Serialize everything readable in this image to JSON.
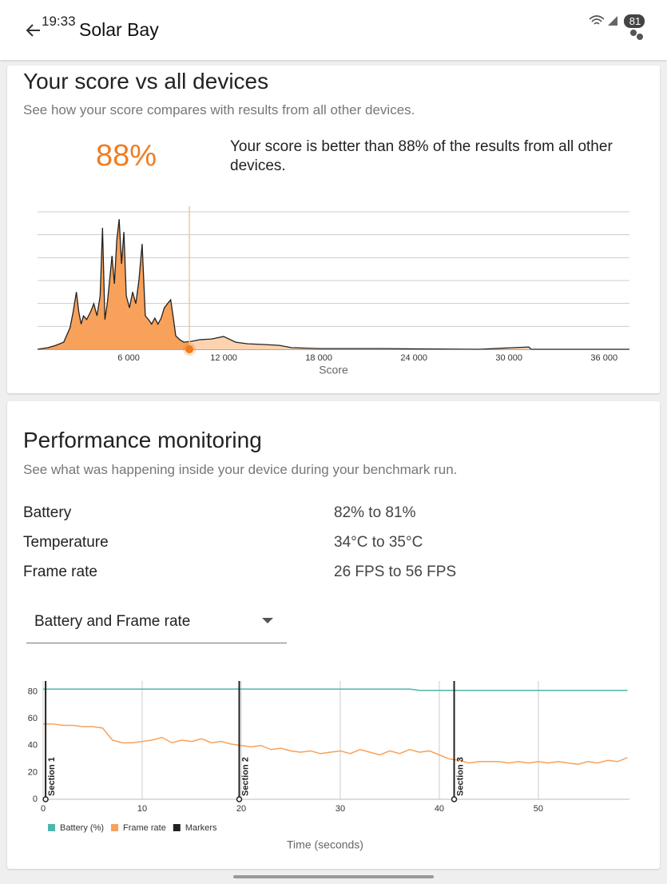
{
  "status_bar": {
    "time": "19:33",
    "battery": "81"
  },
  "app_bar": {
    "title": "Solar Bay"
  },
  "score_section": {
    "title": "Your score vs all devices",
    "subtitle": "See how your score compares with results from all other devices.",
    "percentile": "88%",
    "description": "Your score is better than 88% of the results from all other devices.",
    "chart": {
      "type": "area",
      "x_label": "Score",
      "xlim": [
        250,
        37600
      ],
      "ylim": [
        0,
        6
      ],
      "gridlines": [
        0,
        1,
        2,
        3,
        4,
        5,
        6
      ],
      "xticks": [
        {
          "value": 6000,
          "label": "6 000"
        },
        {
          "value": 12000,
          "label": "12 000"
        },
        {
          "value": 18000,
          "label": "18 000"
        },
        {
          "value": 24000,
          "label": "24 000"
        },
        {
          "value": 30000,
          "label": "30 000"
        },
        {
          "value": 36000,
          "label": "36 000"
        }
      ],
      "user_score": 9830,
      "color": "#f7a15b",
      "x": [
        250,
        900,
        1400,
        1900,
        2300,
        2500,
        2700,
        2850,
        3000,
        3150,
        3350,
        3600,
        3800,
        4000,
        4200,
        4350,
        4500,
        4650,
        4800,
        4950,
        5100,
        5250,
        5400,
        5550,
        5700,
        5850,
        6050,
        6250,
        6450,
        6650,
        6850,
        7050,
        7250,
        7450,
        7650,
        7850,
        8050,
        8250,
        8450,
        8650,
        8800,
        8970,
        9220,
        9480,
        9980,
        10480,
        11240,
        11990,
        12750,
        13510,
        14520,
        15520,
        16280,
        18040,
        22080,
        28120,
        31250,
        31400,
        37600
      ],
      "values": [
        0,
        0.07,
        0.17,
        0.31,
        0.94,
        1.64,
        2.5,
        1.64,
        1.1,
        1.46,
        1.3,
        1.64,
        1.99,
        1.46,
        2.33,
        5.3,
        1.3,
        1.99,
        3.03,
        4.08,
        2.86,
        4.77,
        5.68,
        3.73,
        5.12,
        2.33,
        1.81,
        2.5,
        1.99,
        3.03,
        4.6,
        1.46,
        1.3,
        1.1,
        1.36,
        1.1,
        1.36,
        1.81,
        1.99,
        2.16,
        1.46,
        0.59,
        0.42,
        0.31,
        0.35,
        0.42,
        0.45,
        0.56,
        0.31,
        0.24,
        0.21,
        0.17,
        0.07,
        0.03,
        0.03,
        0,
        0.1,
        0,
        0
      ]
    }
  },
  "performance_section": {
    "title": "Performance monitoring",
    "subtitle": "See what was happening inside your device during your benchmark run.",
    "rows": [
      [
        "Battery",
        "82% to 81%"
      ],
      [
        "Temperature",
        "34°C to 35°C"
      ],
      [
        "Frame rate",
        "26 FPS to 56 FPS"
      ]
    ],
    "dropdown": "Battery and Frame rate",
    "chart": {
      "type": "line",
      "x_label": "Time (seconds)",
      "xlim": [
        0,
        59.2
      ],
      "ylim": [
        0,
        88
      ],
      "xticks": [
        0,
        10,
        20,
        30,
        40,
        50
      ],
      "yticks": [
        0,
        20,
        40,
        60,
        80
      ],
      "x": [
        0,
        1,
        2,
        3,
        4,
        5,
        6,
        7,
        8,
        9,
        10,
        11,
        12,
        13,
        14,
        15,
        16,
        17,
        18,
        19,
        20,
        21,
        22,
        23,
        24,
        25,
        26,
        27,
        28,
        29,
        30,
        31,
        32,
        33,
        34,
        35,
        36,
        37,
        38,
        39,
        40,
        41,
        42,
        43,
        44,
        45,
        46,
        47,
        48,
        49,
        50,
        51,
        52,
        53,
        54,
        55,
        56,
        57,
        58,
        59
      ],
      "series": [
        {
          "name": "Battery (%)",
          "color": "#4db6ac",
          "values": [
            82,
            82,
            82,
            82,
            82,
            82,
            82,
            82,
            82,
            82,
            82,
            82,
            82,
            82,
            82,
            82,
            82,
            82,
            82,
            82,
            82,
            82,
            82,
            82,
            82,
            82,
            82,
            82,
            82,
            82,
            82,
            82,
            82,
            82,
            82,
            82,
            82,
            82,
            81,
            81,
            81,
            81,
            81,
            81,
            81,
            81,
            81,
            81,
            81,
            81,
            81,
            81,
            81,
            81,
            81,
            81,
            81,
            81,
            81,
            81
          ]
        },
        {
          "name": "Frame rate",
          "color": "#f7a15b",
          "values": [
            56,
            56,
            55,
            55,
            54,
            54,
            53,
            44,
            42,
            42,
            43,
            44,
            46,
            42,
            44,
            43,
            45,
            42,
            43,
            41,
            40,
            39,
            40,
            37,
            38,
            36,
            35,
            36,
            34,
            35,
            36,
            34,
            37,
            35,
            33,
            36,
            34,
            37,
            35,
            36,
            33,
            30,
            29,
            27,
            28,
            28,
            28,
            27,
            28,
            27,
            28,
            27,
            28,
            27,
            26,
            28,
            27,
            29,
            28,
            31
          ]
        }
      ],
      "markers_name": "Markers",
      "markers_color": "#222222",
      "markers": [
        {
          "label": "Section 1",
          "x": 0.25
        },
        {
          "label": "Section 2",
          "x": 19.8
        },
        {
          "label": "Section 3",
          "x": 41.5
        }
      ]
    }
  }
}
